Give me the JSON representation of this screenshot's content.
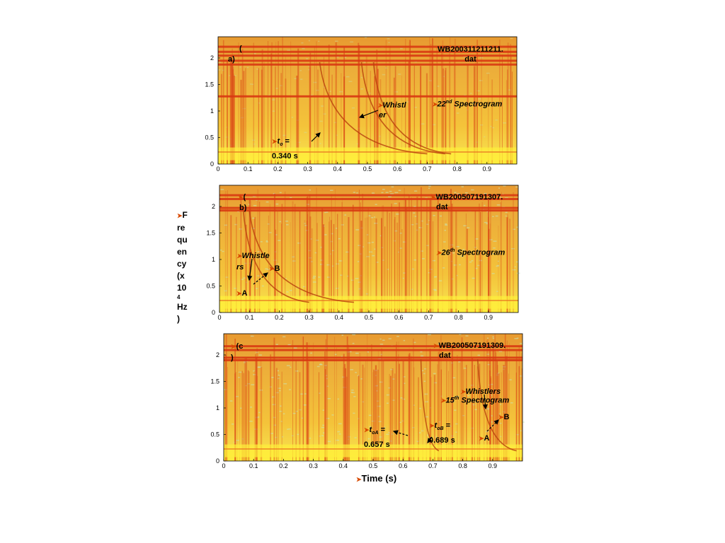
{
  "figure": {
    "ylabel_lines": [
      "F",
      "re",
      "qu",
      "en",
      "cy",
      "(x",
      "10",
      "4",
      "Hz",
      ")"
    ],
    "xlabel": "Time (s)"
  },
  "chart_data": [
    {
      "type": "heatmap",
      "panel_label": [
        "(",
        "a)"
      ],
      "file_label": [
        "WB200311211211.",
        "dat"
      ],
      "spectrogram_label": {
        "prefix": "22",
        "sup": "nd",
        "suffix": " Spectrogram"
      },
      "xlim": [
        0,
        1.0
      ],
      "ylim": [
        0,
        2.4
      ],
      "xticks": [
        "0",
        "0.1",
        "0.2",
        "0.3",
        "0.4",
        "0.5",
        "0.6",
        "0.7",
        "0.8",
        "0.9"
      ],
      "yticks": [
        "0",
        "0.5",
        "1",
        "1.5",
        "2"
      ],
      "annotations": [
        {
          "kind": "text",
          "lines": [
            "Whistl",
            "er"
          ]
        },
        {
          "kind": "time",
          "symbol": "t",
          "sub": "o",
          "value_line": "0.340 s"
        }
      ]
    },
    {
      "type": "heatmap",
      "panel_label": [
        "(",
        "b)"
      ],
      "file_label": [
        "WB200507191307.",
        "dat"
      ],
      "spectrogram_label": {
        "prefix": "26",
        "sup": "th",
        "suffix": " Spectrogram"
      },
      "xlim": [
        0,
        1.0
      ],
      "ylim": [
        0,
        2.4
      ],
      "xticks": [
        "0",
        "0.1",
        "0.2",
        "0.3",
        "0.4",
        "0.5",
        "0.6",
        "0.7",
        "0.8",
        "0.9"
      ],
      "yticks": [
        "0",
        "0.5",
        "1",
        "1.5",
        "2"
      ],
      "annotations": [
        {
          "kind": "text",
          "lines": [
            "Whistle",
            "rs"
          ]
        },
        {
          "kind": "letter",
          "text": "B"
        },
        {
          "kind": "letter",
          "text": "A"
        }
      ]
    },
    {
      "type": "heatmap",
      "panel_label": [
        "(c",
        ")"
      ],
      "file_label": [
        "WB200507191309.",
        "dat"
      ],
      "spectrogram_label": {
        "prefix": "15",
        "sup": "th",
        "suffix": " Spectrogram"
      },
      "xlim": [
        0,
        1.0
      ],
      "ylim": [
        0,
        2.4
      ],
      "xticks": [
        "0",
        "0.1",
        "0.2",
        "0.3",
        "0.4",
        "0.5",
        "0.6",
        "0.7",
        "0.8",
        "0.9"
      ],
      "yticks": [
        "0",
        "0.5",
        "1",
        "1.5",
        "2"
      ],
      "annotations": [
        {
          "kind": "text",
          "lines": [
            "Whistlers"
          ]
        },
        {
          "kind": "letter",
          "text": "B"
        },
        {
          "kind": "letter",
          "text": "A"
        },
        {
          "kind": "time",
          "symbol": "t",
          "sub": "oA",
          "value_line": "0.657 s"
        },
        {
          "kind": "time",
          "symbol": "t",
          "sub": "oB",
          "value_line": "0.689 s"
        }
      ]
    }
  ],
  "colors": {
    "background": "#ffffff",
    "spectrum_base": "#f4c33a",
    "spectrum_hot": "#d83a12",
    "spectrum_low": "#ffef3a",
    "spectrum_cool": "#c8e6b8",
    "annotation_bullet": "#d84a00"
  }
}
